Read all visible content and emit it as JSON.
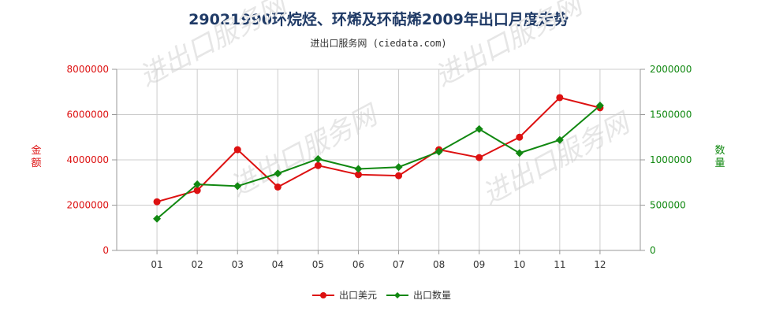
{
  "title": "29021990环烷烃、环烯及环萜烯2009年出口月度走势",
  "subtitle": "进出口服务网 (ciedata.com)",
  "watermark": "进出口服务网",
  "colors": {
    "left": "#dd1111",
    "right": "#118811",
    "grid": "#cccccc",
    "title": "#1f3a66"
  },
  "chart_data": {
    "type": "line",
    "categories": [
      "01",
      "02",
      "03",
      "04",
      "05",
      "06",
      "07",
      "08",
      "09",
      "10",
      "11",
      "12"
    ],
    "y_left": {
      "label": "金额",
      "min": 0,
      "max": 8000000,
      "ticks": [
        "0",
        "2000000",
        "4000000",
        "6000000",
        "8000000"
      ]
    },
    "y_right": {
      "label": "数量",
      "min": 0,
      "max": 2000000,
      "ticks": [
        "0",
        "500000",
        "1000000",
        "1500000",
        "2000000"
      ]
    },
    "series": [
      {
        "name": "出口美元",
        "axis": "left",
        "color": "#dd1111",
        "values": [
          2150000,
          2650000,
          4450000,
          2800000,
          3750000,
          3350000,
          3300000,
          4450000,
          4100000,
          5000000,
          6750000,
          6300000
        ]
      },
      {
        "name": "出口数量",
        "axis": "right",
        "color": "#118811",
        "values": [
          350000,
          730000,
          710000,
          850000,
          1010000,
          900000,
          920000,
          1090000,
          1340000,
          1075000,
          1220000,
          1600000
        ]
      }
    ],
    "grid": true,
    "legend_position": "bottom-center"
  }
}
